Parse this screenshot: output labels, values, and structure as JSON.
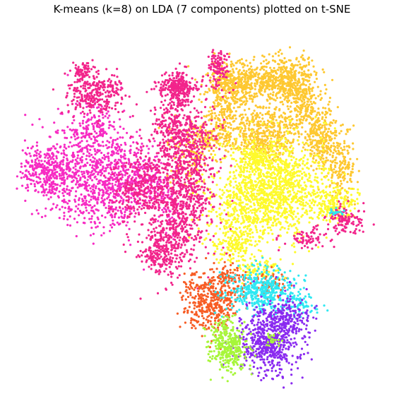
{
  "chart_data": {
    "type": "scatter",
    "title": "K-means (k=8) on LDA (7 components) plotted on t-SNE",
    "xlabel": "",
    "ylabel": "",
    "axes_visible": false,
    "grid": false,
    "legend": "none",
    "point_size": 1.6,
    "xlim": [
      0,
      100
    ],
    "ylim": [
      0,
      100
    ],
    "clusters": [
      {
        "id": 0,
        "color": "#f72bc3",
        "regions": [
          {
            "x": 8,
            "y": 40,
            "sx": 3.5,
            "sy": 3.8,
            "n": 250
          },
          {
            "x": 17,
            "y": 40,
            "sx": 6,
            "sy": 7,
            "n": 500
          },
          {
            "x": 26,
            "y": 43,
            "sx": 5,
            "sy": 7,
            "n": 380
          },
          {
            "x": 34,
            "y": 42,
            "sx": 4,
            "sy": 4,
            "n": 200
          },
          {
            "x": 21,
            "y": 28,
            "sx": 3.5,
            "sy": 4,
            "n": 150
          },
          {
            "x": 41,
            "y": 48,
            "sx": 2,
            "sy": 4,
            "n": 80
          }
        ]
      },
      {
        "id": 1,
        "color": "#f2248b",
        "regions": [
          {
            "x": 22,
            "y": 18,
            "sx": 4,
            "sy": 3,
            "n": 280
          },
          {
            "x": 18,
            "y": 12,
            "sx": 1.3,
            "sy": 1.3,
            "n": 70
          },
          {
            "x": 33,
            "y": 45,
            "sx": 3.5,
            "sy": 4.5,
            "n": 250
          },
          {
            "x": 45,
            "y": 47,
            "sx": 4,
            "sy": 8,
            "n": 550
          },
          {
            "x": 45,
            "y": 33,
            "sx": 5,
            "sy": 6,
            "n": 350
          },
          {
            "x": 39,
            "y": 62,
            "sx": 3,
            "sy": 3,
            "n": 180
          },
          {
            "x": 44,
            "y": 17,
            "sx": 1.5,
            "sy": 2.5,
            "n": 130
          },
          {
            "x": 43,
            "y": 16,
            "sx": 3,
            "sy": 1.5,
            "n": 160
          },
          {
            "x": 43,
            "y": 27,
            "sx": 3,
            "sy": 3,
            "n": 140
          },
          {
            "x": 54,
            "y": 11,
            "sx": 1.5,
            "sy": 2.5,
            "n": 110
          },
          {
            "x": 88,
            "y": 53,
            "sx": 2.5,
            "sy": 2,
            "n": 120
          },
          {
            "x": 78,
            "y": 58,
            "sx": 3,
            "sy": 1.5,
            "n": 70
          },
          {
            "x": 42,
            "y": 56,
            "sx": 4,
            "sy": 6,
            "n": 160
          }
        ]
      },
      {
        "id": 2,
        "color": "#fec831",
        "regions": [
          {
            "x": 63,
            "y": 15,
            "sx": 5,
            "sy": 3,
            "n": 420
          },
          {
            "x": 73,
            "y": 14,
            "sx": 3.5,
            "sy": 3,
            "n": 280
          },
          {
            "x": 77,
            "y": 21,
            "sx": 3,
            "sy": 5,
            "n": 280
          },
          {
            "x": 82,
            "y": 31,
            "sx": 3,
            "sy": 4,
            "n": 250
          },
          {
            "x": 87,
            "y": 39,
            "sx": 2,
            "sy": 3.5,
            "n": 150
          },
          {
            "x": 66,
            "y": 27,
            "sx": 5,
            "sy": 3,
            "n": 250
          },
          {
            "x": 55,
            "y": 30,
            "sx": 5,
            "sy": 2.5,
            "n": 220
          },
          {
            "x": 47,
            "y": 36,
            "sx": 3,
            "sy": 5,
            "n": 130
          },
          {
            "x": 57,
            "y": 15,
            "sx": 3,
            "sy": 3,
            "n": 150
          },
          {
            "x": 56,
            "y": 22,
            "sx": 2.5,
            "sy": 3,
            "n": 120
          },
          {
            "x": 68,
            "y": 32,
            "sx": 3,
            "sy": 2,
            "n": 130
          }
        ]
      },
      {
        "id": 3,
        "color": "#fefa2c",
        "regions": [
          {
            "x": 69,
            "y": 44,
            "sx": 7,
            "sy": 6.5,
            "n": 1100
          },
          {
            "x": 61,
            "y": 53,
            "sx": 5,
            "sy": 5,
            "n": 300
          },
          {
            "x": 85,
            "y": 49,
            "sx": 3,
            "sy": 2.5,
            "n": 220
          },
          {
            "x": 65,
            "y": 36,
            "sx": 3,
            "sy": 2,
            "n": 150
          },
          {
            "x": 58,
            "y": 60,
            "sx": 2.5,
            "sy": 2.5,
            "n": 120
          },
          {
            "x": 65,
            "y": 67,
            "sx": 3,
            "sy": 1.5,
            "n": 80
          }
        ]
      },
      {
        "id": 4,
        "color": "#2fe8f2",
        "regions": [
          {
            "x": 66,
            "y": 73,
            "sx": 4.5,
            "sy": 3,
            "n": 420
          },
          {
            "x": 76,
            "y": 77,
            "sx": 2.5,
            "sy": 2,
            "n": 70
          },
          {
            "x": 86,
            "y": 51,
            "sx": 1.2,
            "sy": 0.6,
            "n": 18
          }
        ]
      },
      {
        "id": 5,
        "color": "#f75d25",
        "regions": [
          {
            "x": 52,
            "y": 76,
            "sx": 3.5,
            "sy": 4,
            "n": 420
          },
          {
            "x": 58,
            "y": 70,
            "sx": 2.5,
            "sy": 2.5,
            "n": 100
          },
          {
            "x": 68,
            "y": 71,
            "sx": 2,
            "sy": 2,
            "n": 70
          }
        ]
      },
      {
        "id": 6,
        "color": "#a7f63a",
        "regions": [
          {
            "x": 57,
            "y": 89,
            "sx": 2.5,
            "sy": 3,
            "n": 300
          },
          {
            "x": 55,
            "y": 83,
            "sx": 2,
            "sy": 1.5,
            "n": 40
          },
          {
            "x": 69,
            "y": 86,
            "sx": 1,
            "sy": 1,
            "n": 25
          }
        ]
      },
      {
        "id": 7,
        "color": "#8a2af0",
        "regions": [
          {
            "x": 68,
            "y": 87,
            "sx": 4,
            "sy": 4.5,
            "n": 600
          },
          {
            "x": 73,
            "y": 80,
            "sx": 3,
            "sy": 2.5,
            "n": 150
          }
        ]
      }
    ]
  }
}
